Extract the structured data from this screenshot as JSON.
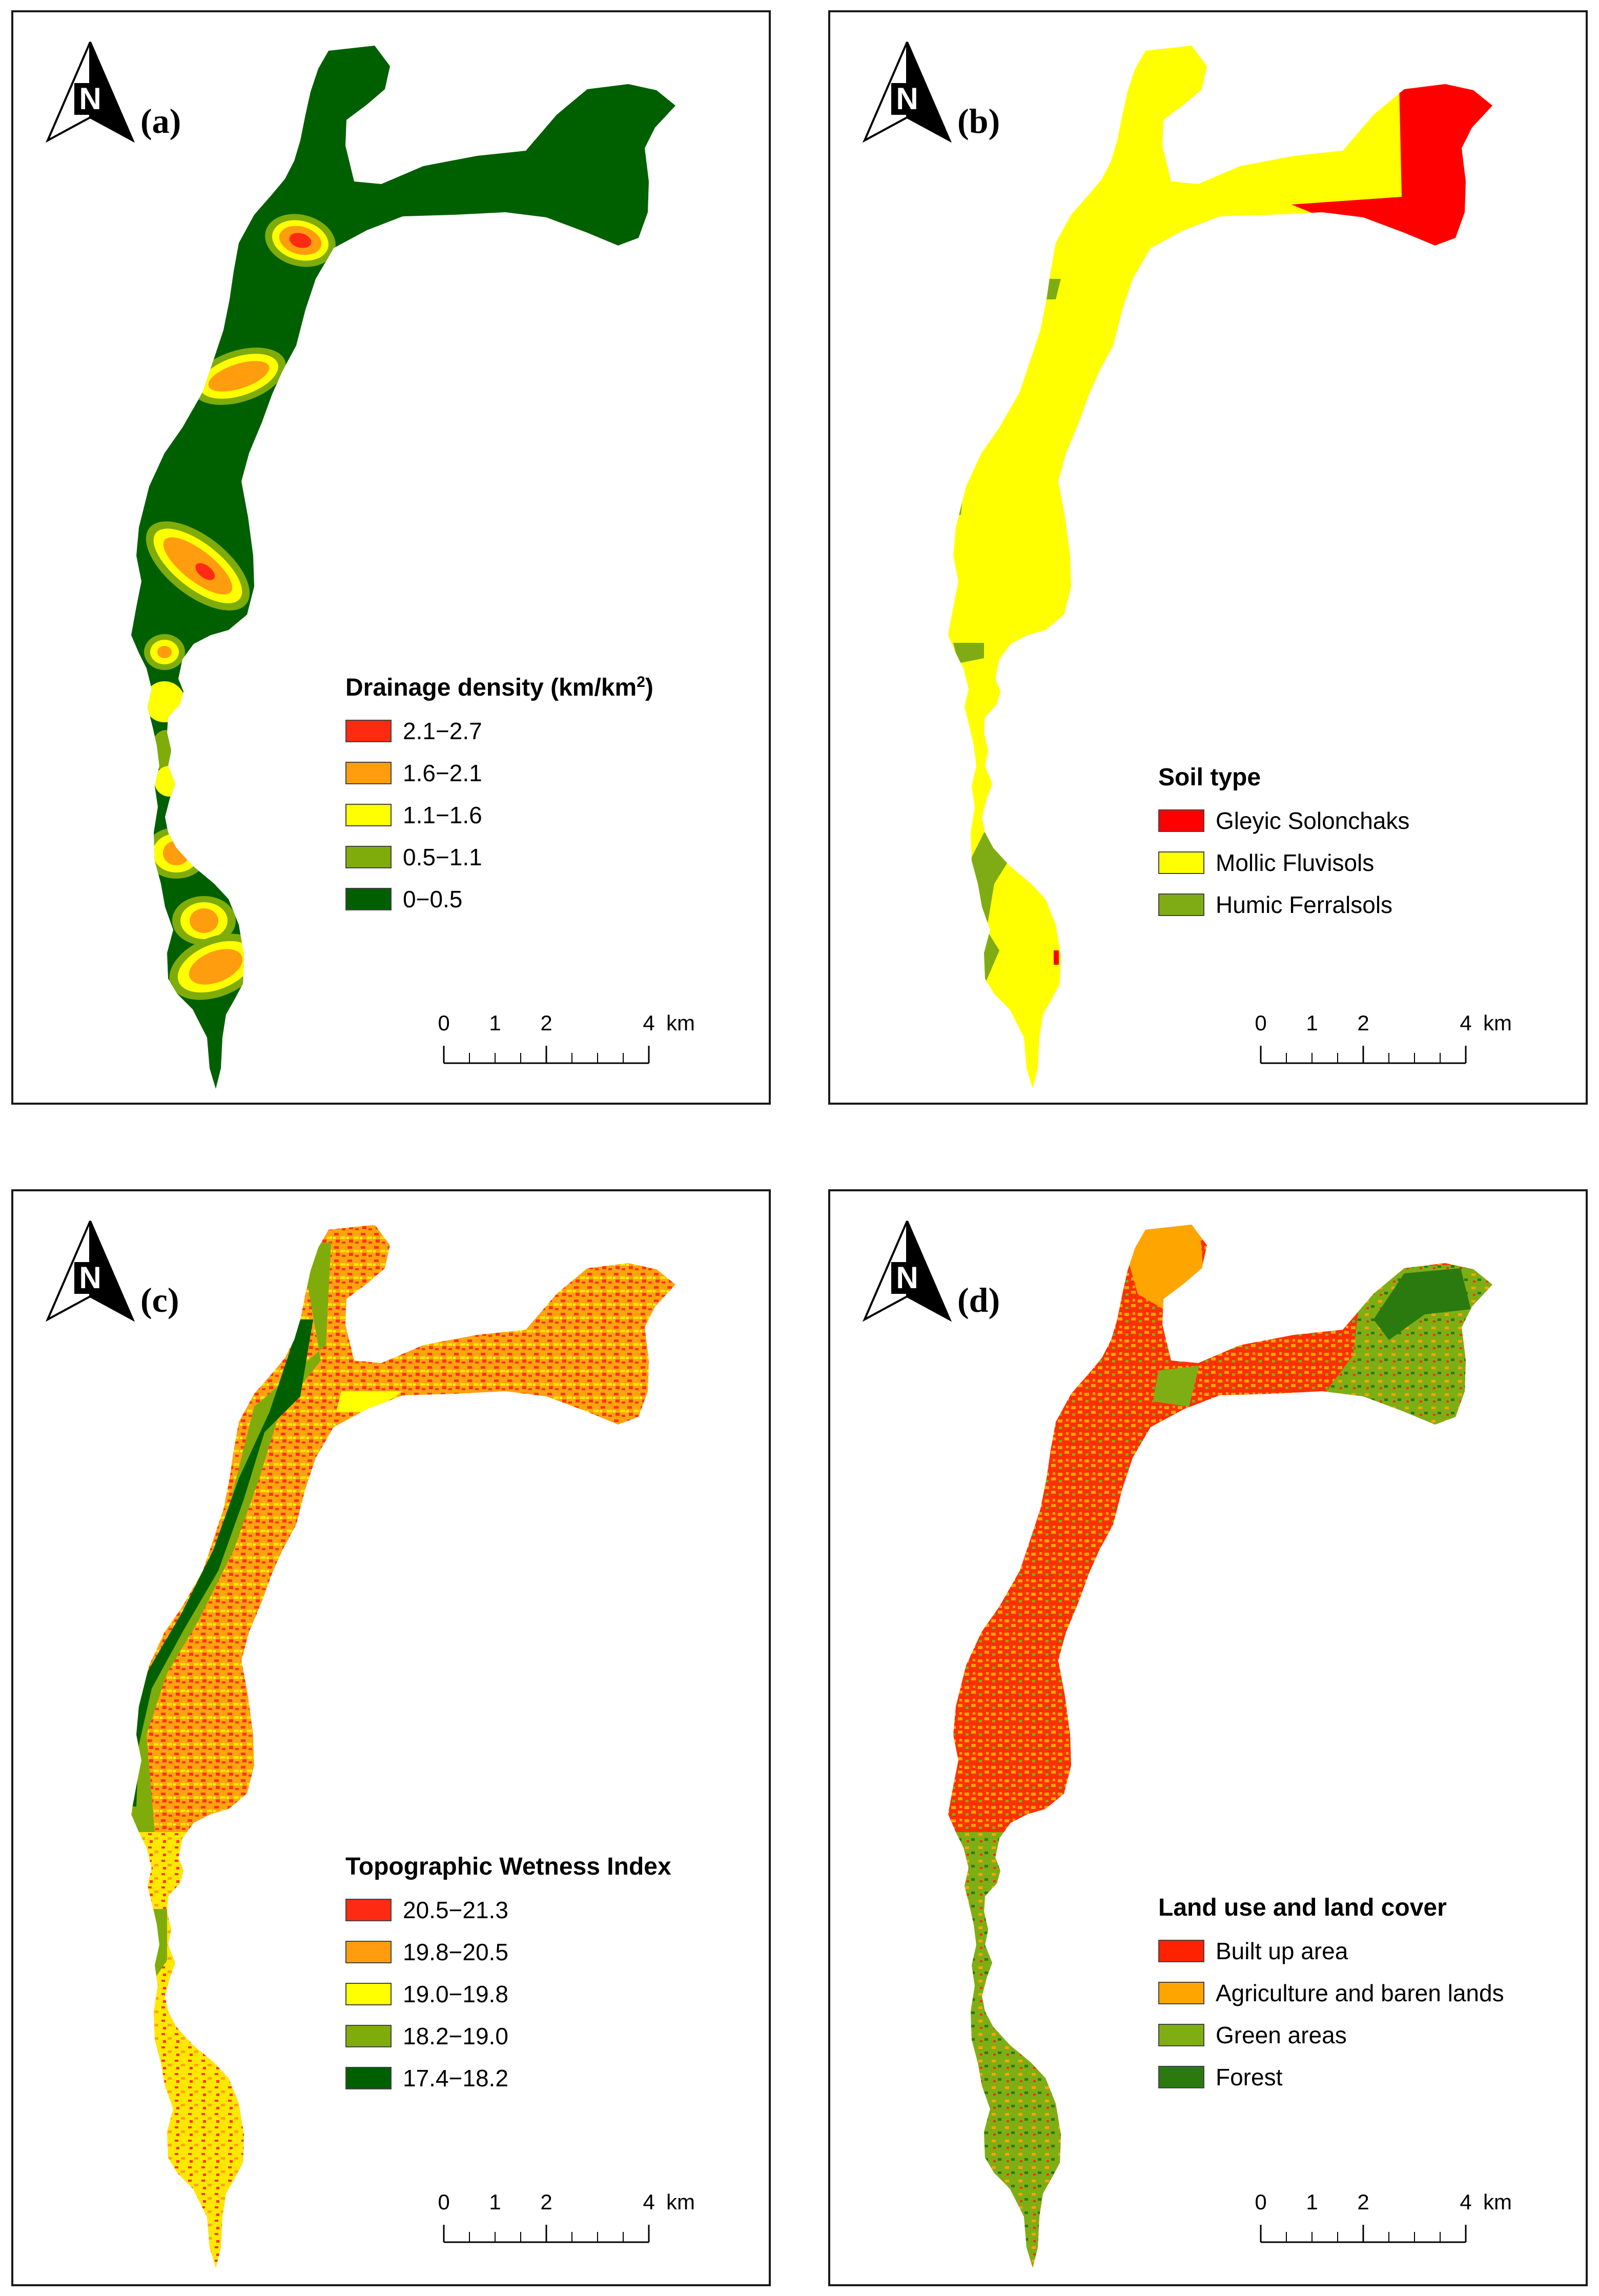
{
  "panels": {
    "a": {
      "label": "(a)",
      "legend": {
        "title": "Drainage density (km/km",
        "title_sup": "2",
        "title_close": ")",
        "items": [
          {
            "label": "2.1−2.7",
            "color": "#ff2a12"
          },
          {
            "label": "1.6−2.1",
            "color": "#ff9d0f"
          },
          {
            "label": "1.1−1.6",
            "color": "#ffff00"
          },
          {
            "label": "0.5−1.1",
            "color": "#7fac0a"
          },
          {
            "label": "0−0.5",
            "color": "#006000"
          }
        ]
      }
    },
    "b": {
      "label": "(b)",
      "legend": {
        "title": "Soil type",
        "items": [
          {
            "label": "Gleyic Solonchaks",
            "color": "#ff0000"
          },
          {
            "label": "Mollic Fluvisols",
            "color": "#ffff00"
          },
          {
            "label": "Humic Ferralsols",
            "color": "#7fac14"
          }
        ]
      }
    },
    "c": {
      "label": "(c)",
      "legend": {
        "title": "Topographic Wetness Index",
        "items": [
          {
            "label": "20.5−21.3",
            "color": "#ff2a12"
          },
          {
            "label": "19.8−20.5",
            "color": "#ff9d0f"
          },
          {
            "label": "19.0−19.8",
            "color": "#ffff00"
          },
          {
            "label": "18.2−19.0",
            "color": "#7fac0a"
          },
          {
            "label": "17.4−18.2",
            "color": "#006000"
          }
        ]
      }
    },
    "d": {
      "label": "(d)",
      "legend": {
        "title": "Land use and land cover",
        "items": [
          {
            "label": "Built up area",
            "color": "#ff2200"
          },
          {
            "label": "Agriculture and baren lands",
            "color": "#ffa500"
          },
          {
            "label": "Green areas",
            "color": "#7fae14"
          },
          {
            "label": "Forest",
            "color": "#2a7a10"
          }
        ]
      }
    }
  },
  "north_arrow": {
    "letter": "N",
    "icon": "north-arrow-icon"
  },
  "scale_bar": {
    "ticks": [
      "0",
      "1",
      "2",
      "4"
    ],
    "unit": "km"
  }
}
